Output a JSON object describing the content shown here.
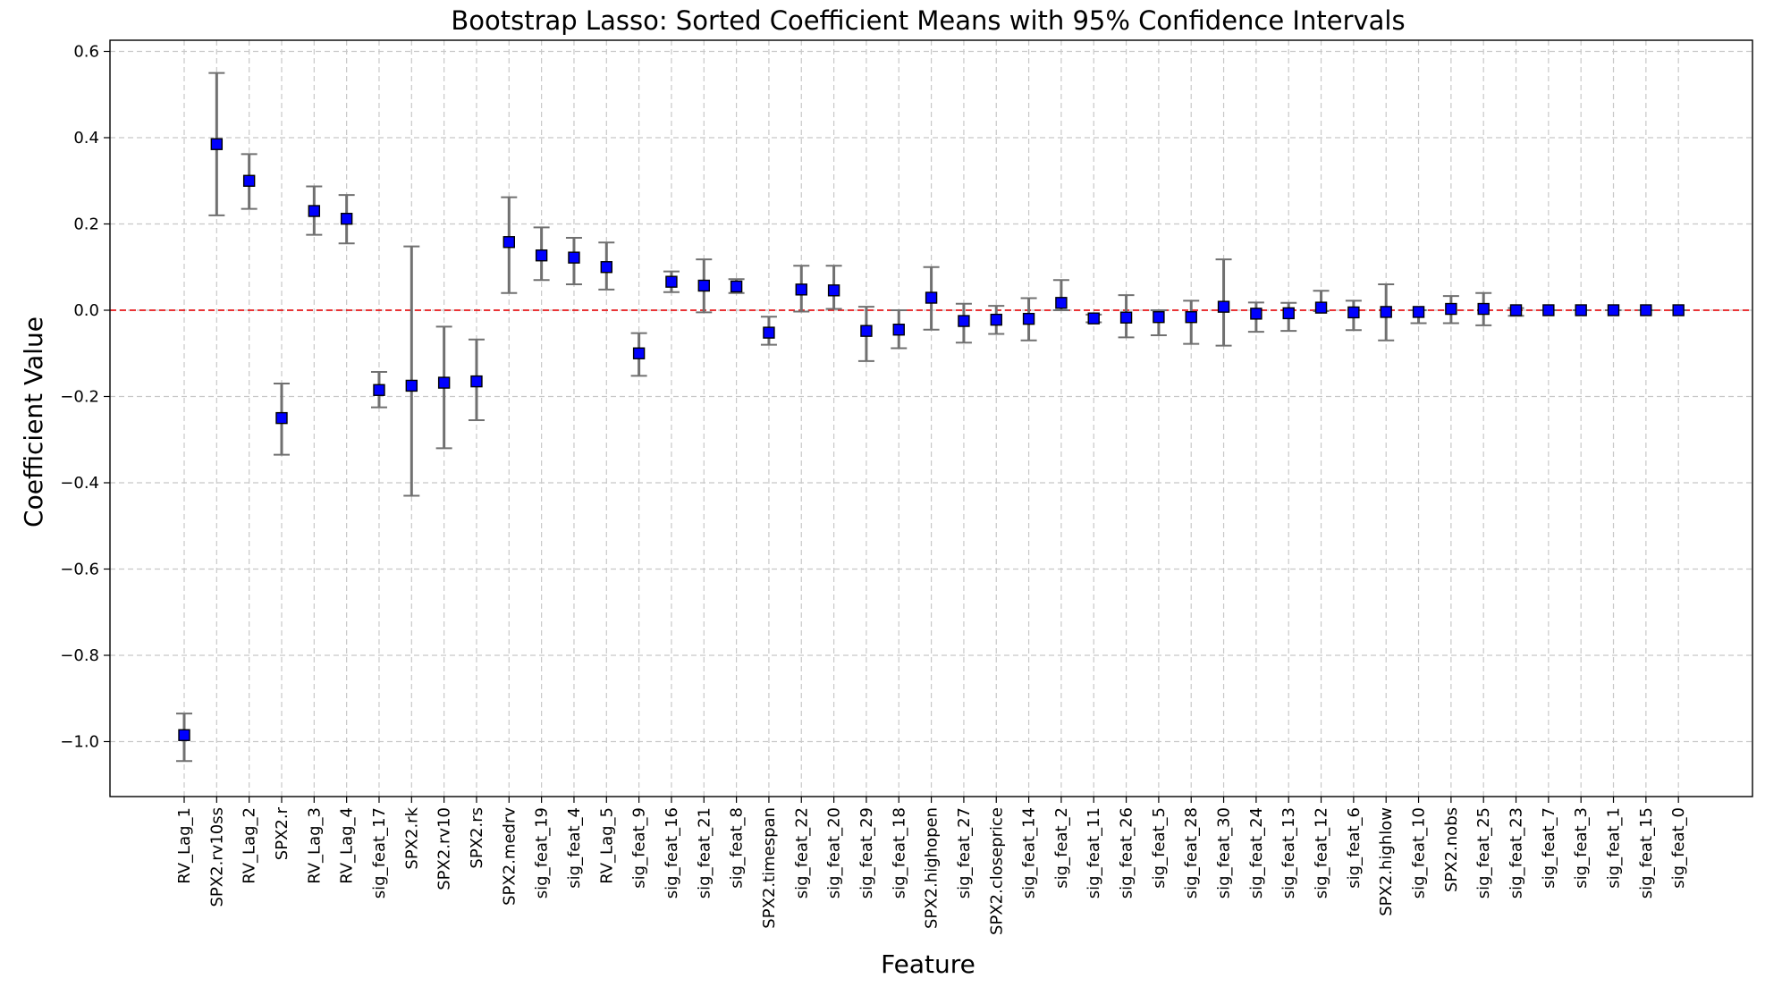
{
  "chart_data": {
    "type": "scatter",
    "title": "Bootstrap Lasso: Sorted Coefficient Means with 95% Confidence Intervals",
    "xlabel": "Feature",
    "ylabel": "Coefficient Value",
    "ylim": [
      -1.13,
      0.63
    ],
    "yticks": [
      0.6,
      0.4,
      0.2,
      0.0,
      -0.2,
      -0.4,
      -0.6,
      -0.8,
      -1.0
    ],
    "ytick_labels": [
      "0.6",
      "0.4",
      "0.2",
      "0.0",
      "−0.2",
      "−0.4",
      "−0.6",
      "−0.8",
      "−1.0"
    ],
    "grid": true,
    "reference_line": {
      "y": 0.0,
      "color": "#e8191b",
      "style": "dashed"
    },
    "marker_color": "#0000ff",
    "errorbar_color": "#707070",
    "points": [
      {
        "label": "RV_Lag_1",
        "mean": -0.985,
        "lo": -1.045,
        "hi": -0.935
      },
      {
        "label": "SPX2.rv10ss",
        "mean": 0.385,
        "lo": 0.22,
        "hi": 0.55
      },
      {
        "label": "RV_Lag_2",
        "mean": 0.3,
        "lo": 0.235,
        "hi": 0.362
      },
      {
        "label": "SPX2.r",
        "mean": -0.25,
        "lo": -0.335,
        "hi": -0.17
      },
      {
        "label": "RV_Lag_3",
        "mean": 0.23,
        "lo": 0.175,
        "hi": 0.287
      },
      {
        "label": "RV_Lag_4",
        "mean": 0.212,
        "lo": 0.155,
        "hi": 0.267
      },
      {
        "label": "sig_feat_17",
        "mean": -0.185,
        "lo": -0.225,
        "hi": -0.143
      },
      {
        "label": "SPX2.rk",
        "mean": -0.175,
        "lo": -0.43,
        "hi": 0.148
      },
      {
        "label": "SPX2.rv10",
        "mean": -0.168,
        "lo": -0.32,
        "hi": -0.038
      },
      {
        "label": "SPX2.rs",
        "mean": -0.165,
        "lo": -0.255,
        "hi": -0.068
      },
      {
        "label": "SPX2.medrv",
        "mean": 0.158,
        "lo": 0.04,
        "hi": 0.262
      },
      {
        "label": "sig_feat_19",
        "mean": 0.127,
        "lo": 0.07,
        "hi": 0.192
      },
      {
        "label": "sig_feat_4",
        "mean": 0.122,
        "lo": 0.06,
        "hi": 0.168
      },
      {
        "label": "RV_Lag_5",
        "mean": 0.1,
        "lo": 0.048,
        "hi": 0.157
      },
      {
        "label": "sig_feat_9",
        "mean": -0.1,
        "lo": -0.152,
        "hi": -0.053
      },
      {
        "label": "sig_feat_16",
        "mean": 0.066,
        "lo": 0.042,
        "hi": 0.09
      },
      {
        "label": "sig_feat_21",
        "mean": 0.057,
        "lo": -0.005,
        "hi": 0.118
      },
      {
        "label": "sig_feat_8",
        "mean": 0.055,
        "lo": 0.04,
        "hi": 0.072
      },
      {
        "label": "SPX2.timespan",
        "mean": -0.052,
        "lo": -0.08,
        "hi": -0.015
      },
      {
        "label": "sig_feat_22",
        "mean": 0.048,
        "lo": -0.003,
        "hi": 0.103
      },
      {
        "label": "sig_feat_20",
        "mean": 0.046,
        "lo": 0.003,
        "hi": 0.103
      },
      {
        "label": "sig_feat_29",
        "mean": -0.048,
        "lo": -0.118,
        "hi": 0.008
      },
      {
        "label": "sig_feat_18",
        "mean": -0.045,
        "lo": -0.088,
        "hi": 0.0
      },
      {
        "label": "SPX2.highopen",
        "mean": 0.029,
        "lo": -0.045,
        "hi": 0.1
      },
      {
        "label": "sig_feat_27",
        "mean": -0.025,
        "lo": -0.075,
        "hi": 0.015
      },
      {
        "label": "SPX2.closeprice",
        "mean": -0.022,
        "lo": -0.055,
        "hi": 0.01
      },
      {
        "label": "sig_feat_14",
        "mean": -0.02,
        "lo": -0.07,
        "hi": 0.028
      },
      {
        "label": "sig_feat_2",
        "mean": 0.017,
        "lo": 0.0,
        "hi": 0.07
      },
      {
        "label": "sig_feat_11",
        "mean": -0.019,
        "lo": -0.028,
        "hi": -0.01
      },
      {
        "label": "sig_feat_26",
        "mean": -0.017,
        "lo": -0.063,
        "hi": 0.035
      },
      {
        "label": "sig_feat_5",
        "mean": -0.016,
        "lo": -0.058,
        "hi": 0.0
      },
      {
        "label": "sig_feat_28",
        "mean": -0.016,
        "lo": -0.078,
        "hi": 0.022
      },
      {
        "label": "sig_feat_30",
        "mean": 0.008,
        "lo": -0.082,
        "hi": 0.118
      },
      {
        "label": "sig_feat_24",
        "mean": -0.008,
        "lo": -0.05,
        "hi": 0.018
      },
      {
        "label": "sig_feat_13",
        "mean": -0.007,
        "lo": -0.048,
        "hi": 0.017
      },
      {
        "label": "sig_feat_12",
        "mean": 0.006,
        "lo": -0.002,
        "hi": 0.045
      },
      {
        "label": "sig_feat_6",
        "mean": -0.005,
        "lo": -0.046,
        "hi": 0.022
      },
      {
        "label": "SPX2.highlow",
        "mean": -0.004,
        "lo": -0.07,
        "hi": 0.06
      },
      {
        "label": "sig_feat_10",
        "mean": -0.004,
        "lo": -0.03,
        "hi": 0.0
      },
      {
        "label": "SPX2.nobs",
        "mean": 0.003,
        "lo": -0.03,
        "hi": 0.033
      },
      {
        "label": "sig_feat_25",
        "mean": 0.003,
        "lo": -0.035,
        "hi": 0.04
      },
      {
        "label": "sig_feat_23",
        "mean": 0.0,
        "lo": -0.013,
        "hi": 0.005
      },
      {
        "label": "sig_feat_7",
        "mean": 0.0,
        "lo": 0.0,
        "hi": 0.0
      },
      {
        "label": "sig_feat_3",
        "mean": 0.0,
        "lo": 0.0,
        "hi": 0.0
      },
      {
        "label": "sig_feat_1",
        "mean": 0.0,
        "lo": 0.0,
        "hi": 0.0
      },
      {
        "label": "sig_feat_15",
        "mean": 0.0,
        "lo": 0.0,
        "hi": 0.0
      },
      {
        "label": "sig_feat_0",
        "mean": 0.0,
        "lo": 0.0,
        "hi": 0.0
      }
    ]
  }
}
